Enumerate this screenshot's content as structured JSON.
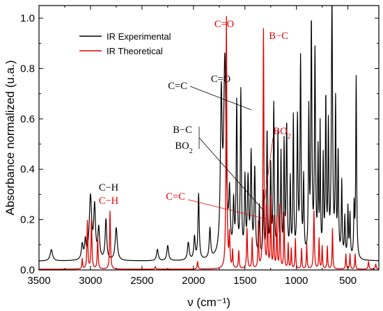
{
  "chart_data": {
    "type": "line",
    "xlabel": "ν (cm⁻¹)",
    "ylabel": "Absorbance normalized (u.a.)",
    "xlim": [
      3500,
      200
    ],
    "ylim": [
      0,
      1.05
    ],
    "xticks": [
      3500,
      3000,
      2500,
      2000,
      1500,
      1000,
      500
    ],
    "yticks": [
      0.0,
      0.2,
      0.4,
      0.6,
      0.8,
      1.0
    ],
    "xtick_labels": [
      "3500",
      "3000",
      "2500",
      "2000",
      "1500",
      "1000",
      "500"
    ],
    "ytick_labels": [
      "0.0",
      "0.2",
      "0.4",
      "0.6",
      "0.8",
      "1.0"
    ],
    "legend": {
      "placement": "top-left",
      "entries": [
        "IR Experimental",
        "IR Theoretical"
      ]
    },
    "series": [
      {
        "name": "IR Experimental",
        "color": "#000000",
        "baseline": 0.035,
        "peaks": [
          [
            3380,
            0.045,
            14
          ],
          [
            3080,
            0.06,
            10
          ],
          [
            3050,
            0.07,
            8
          ],
          [
            3000,
            0.25,
            14
          ],
          [
            2960,
            0.2,
            10
          ],
          [
            2920,
            0.12,
            10
          ],
          [
            2850,
            0.16,
            9
          ],
          [
            2750,
            0.13,
            12
          ],
          [
            2350,
            0.045,
            10
          ],
          [
            2250,
            0.06,
            10
          ],
          [
            2050,
            0.07,
            10
          ],
          [
            1990,
            0.09,
            8
          ],
          [
            1950,
            0.26,
            7
          ],
          [
            1840,
            0.12,
            8
          ],
          [
            1730,
            0.6,
            10
          ],
          [
            1695,
            0.77,
            14
          ],
          [
            1650,
            0.22,
            8
          ],
          [
            1610,
            0.2,
            7
          ],
          [
            1580,
            0.6,
            6
          ],
          [
            1540,
            0.65,
            6
          ],
          [
            1500,
            0.3,
            6
          ],
          [
            1470,
            0.3,
            8
          ],
          [
            1440,
            0.4,
            7
          ],
          [
            1405,
            0.35,
            7
          ],
          [
            1360,
            0.2,
            5
          ],
          [
            1320,
            0.25,
            5
          ],
          [
            1285,
            0.5,
            6
          ],
          [
            1250,
            0.35,
            6
          ],
          [
            1220,
            0.6,
            6
          ],
          [
            1180,
            0.48,
            5
          ],
          [
            1150,
            0.4,
            5
          ],
          [
            1120,
            0.44,
            5
          ],
          [
            1095,
            0.52,
            6
          ],
          [
            1060,
            0.3,
            5
          ],
          [
            1030,
            0.55,
            5
          ],
          [
            990,
            0.54,
            6
          ],
          [
            960,
            0.78,
            6
          ],
          [
            930,
            0.3,
            5
          ],
          [
            880,
            0.56,
            5
          ],
          [
            855,
            0.92,
            6
          ],
          [
            820,
            0.8,
            6
          ],
          [
            790,
            0.4,
            5
          ],
          [
            770,
            0.5,
            4
          ],
          [
            740,
            0.38,
            5
          ],
          [
            715,
            0.62,
            5
          ],
          [
            690,
            0.5,
            5
          ],
          [
            655,
            1.0,
            7
          ],
          [
            620,
            0.6,
            5
          ],
          [
            595,
            0.41,
            5
          ],
          [
            560,
            0.3,
            5
          ],
          [
            530,
            0.16,
            5
          ],
          [
            500,
            0.2,
            5
          ],
          [
            480,
            0.17,
            5
          ],
          [
            440,
            0.2,
            5
          ],
          [
            420,
            0.72,
            5
          ]
        ]
      },
      {
        "name": "IR Theoretical",
        "color": "#e00000",
        "baseline": 0.003,
        "peaks": [
          [
            3080,
            0.04,
            4
          ],
          [
            3030,
            0.19,
            5
          ],
          [
            2990,
            0.2,
            5
          ],
          [
            2930,
            0.12,
            5
          ],
          [
            2810,
            0.23,
            5
          ],
          [
            2370,
            0.01,
            5
          ],
          [
            1960,
            0.03,
            5
          ],
          [
            1680,
            1.0,
            5
          ],
          [
            1650,
            0.13,
            5
          ],
          [
            1620,
            0.07,
            4
          ],
          [
            1560,
            0.07,
            5
          ],
          [
            1480,
            0.16,
            5
          ],
          [
            1430,
            0.12,
            4
          ],
          [
            1370,
            0.18,
            4
          ],
          [
            1320,
            0.95,
            5
          ],
          [
            1280,
            0.24,
            4
          ],
          [
            1250,
            0.28,
            4
          ],
          [
            1220,
            0.2,
            4
          ],
          [
            1190,
            0.2,
            4
          ],
          [
            1160,
            0.25,
            4
          ],
          [
            1120,
            0.22,
            4
          ],
          [
            1080,
            0.1,
            4
          ],
          [
            1050,
            0.08,
            4
          ],
          [
            1010,
            0.12,
            4
          ],
          [
            950,
            0.08,
            4
          ],
          [
            900,
            0.1,
            4
          ],
          [
            830,
            0.23,
            5
          ],
          [
            780,
            0.12,
            4
          ],
          [
            750,
            0.09,
            4
          ],
          [
            700,
            0.09,
            4
          ],
          [
            650,
            0.16,
            4
          ],
          [
            520,
            0.06,
            4
          ],
          [
            480,
            0.06,
            4
          ],
          [
            430,
            0.06,
            4
          ],
          [
            300,
            0.03,
            5
          ],
          [
            230,
            0.02,
            5
          ]
        ]
      }
    ],
    "annotations": [
      {
        "id": "ch_black",
        "text": "C−H",
        "color": "#000000"
      },
      {
        "id": "ch_red",
        "text": "C−H",
        "color": "#e00000"
      },
      {
        "id": "cc_red",
        "text": "C=C",
        "color": "#e00000"
      },
      {
        "id": "cc_black",
        "text": "C=C",
        "color": "#000000"
      },
      {
        "id": "co_black",
        "text": "C=O",
        "color": "#000000"
      },
      {
        "id": "co_red",
        "text": "C=O",
        "color": "#e00000"
      },
      {
        "id": "bc_red",
        "text": "B−C",
        "color": "#e00000"
      },
      {
        "id": "bc_black",
        "text": "B−C",
        "color": "#000000"
      },
      {
        "id": "bo2_black",
        "text": "BO",
        "sub": "2",
        "color": "#000000"
      },
      {
        "id": "bo2_red",
        "text": "BO",
        "sub": "2",
        "color": "#e00000"
      }
    ]
  }
}
